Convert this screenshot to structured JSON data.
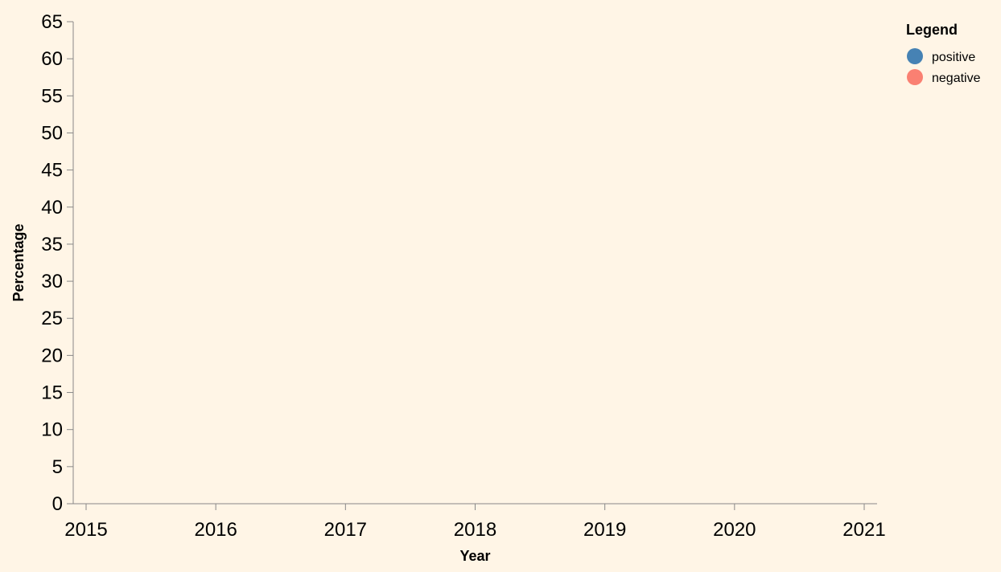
{
  "chart_data": {
    "type": "line",
    "title": "",
    "xlabel": "Year",
    "ylabel": "Percentage",
    "x_ticks": [
      "2015",
      "2016",
      "2017",
      "2018",
      "2019",
      "2020",
      "2021"
    ],
    "xlim": [
      2015,
      2021
    ],
    "y_ticks": [
      "0",
      "5",
      "10",
      "15",
      "20",
      "25",
      "30",
      "35",
      "40",
      "45",
      "50",
      "55",
      "60",
      "65"
    ],
    "ylim": [
      0,
      65
    ],
    "grid": false,
    "legend": {
      "title": "Legend",
      "placement": "top-right",
      "entries": [
        {
          "label": "positive",
          "color": "#4682b4"
        },
        {
          "label": "negative",
          "color": "#fa8072"
        }
      ]
    },
    "series": []
  },
  "colors": {
    "background": "#fff5e6",
    "axis": "#888888"
  }
}
